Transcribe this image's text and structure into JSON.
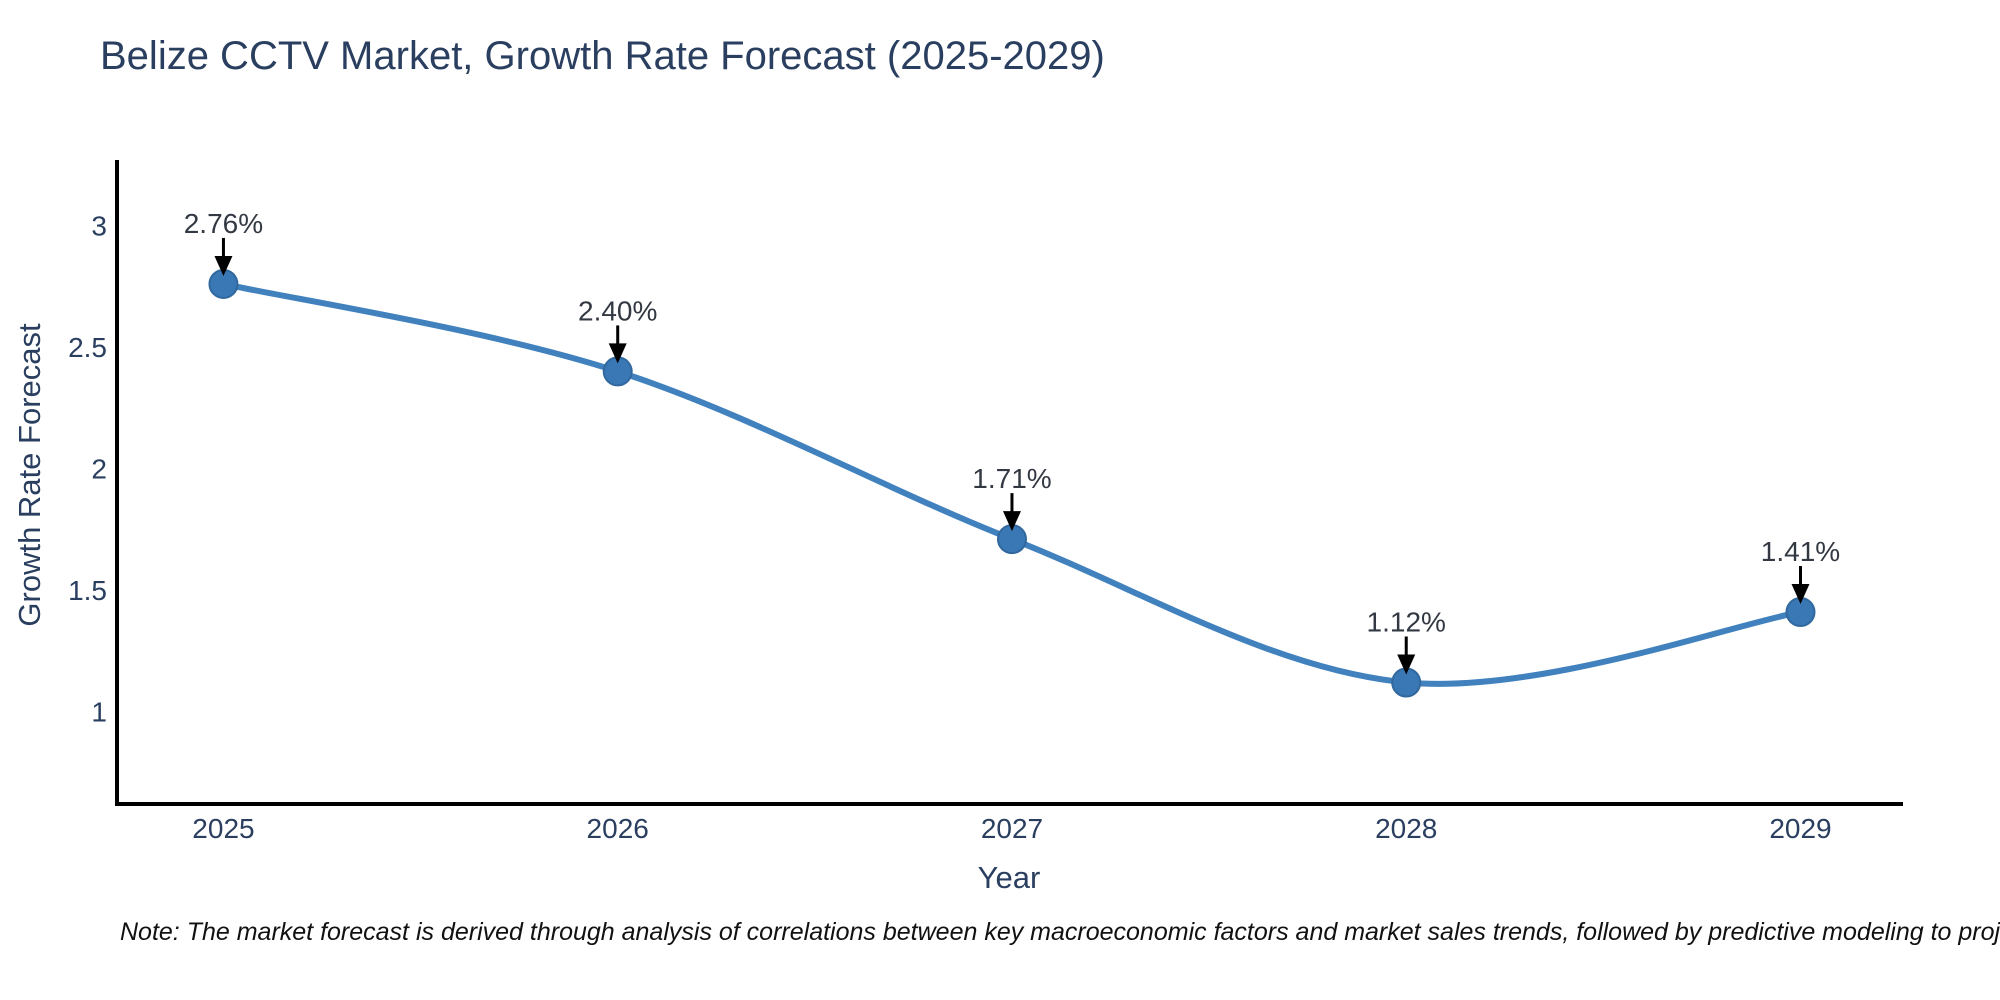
{
  "title": "Belize CCTV Market, Growth Rate Forecast (2025-2029)",
  "footnote": "Note: The market forecast is derived through analysis of correlations between key macroeconomic factors and market sales trends, followed by predictive modeling to project future sales",
  "chart_data": {
    "type": "line",
    "title": "Belize CCTV Market, Growth Rate Forecast (2025-2029)",
    "xlabel": "Year",
    "ylabel": "Growth Rate Forecast",
    "categories": [
      2025,
      2026,
      2027,
      2028,
      2029
    ],
    "values": [
      2.76,
      2.4,
      1.71,
      1.12,
      1.41
    ],
    "point_labels": [
      "2.76%",
      "2.40%",
      "1.71%",
      "1.12%",
      "1.41%"
    ],
    "yticks": [
      1,
      1.5,
      2,
      2.5,
      3
    ],
    "ylim": [
      0.62,
      3.27
    ],
    "xlim": [
      2024.73,
      2029.26
    ],
    "grid": false,
    "legend": "none",
    "line_shape": "spline",
    "annotation_arrows": true,
    "colors": {
      "line": "#4181bd",
      "marker_fill": "#3a78b5",
      "marker_edge": "#31689e",
      "axis_line": "#000000",
      "tick_label": "#2a3f5f",
      "annotation_text": "#333942",
      "arrow": "#000000",
      "title": "#2a3f5f",
      "background": "#ffffff"
    }
  }
}
